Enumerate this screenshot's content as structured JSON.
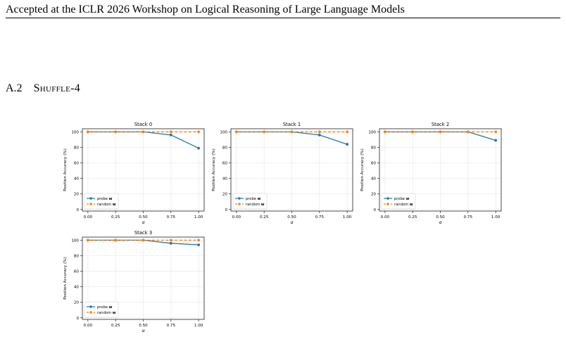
{
  "header": {
    "text": "Accepted at the ICLR 2026 Workshop on Logical Reasoning of Large Language Models"
  },
  "section": {
    "number": "A.2",
    "title": "Shuffle-4"
  },
  "colors": {
    "probe": "#1f77b4",
    "random": "#ff7f0e",
    "grid": "#e6e6e6",
    "axis": "#000000"
  },
  "chart_data": [
    {
      "type": "line",
      "title": "Stack 0",
      "xlabel": "α",
      "ylabel": "Position Accuracy (%)",
      "x": [
        0.0,
        0.25,
        0.5,
        0.75,
        1.0
      ],
      "x_ticks": [
        "0.00",
        "0.25",
        "0.50",
        "0.75",
        "1.00"
      ],
      "y_ticks": [
        "0",
        "20",
        "40",
        "60",
        "80",
        "100"
      ],
      "xlim": [
        -0.05,
        1.05
      ],
      "ylim": [
        -2,
        104
      ],
      "grid": true,
      "legend_position": "lower-left",
      "series": [
        {
          "name": "probe w",
          "style": "solid",
          "values": [
            100,
            100,
            100,
            96,
            79
          ]
        },
        {
          "name": "random w",
          "style": "dashed",
          "values": [
            100,
            100,
            100,
            100,
            100
          ]
        }
      ]
    },
    {
      "type": "line",
      "title": "Stack 1",
      "xlabel": "α",
      "ylabel": "Position Accuracy (%)",
      "x": [
        0.0,
        0.25,
        0.5,
        0.75,
        1.0
      ],
      "x_ticks": [
        "0.00",
        "0.25",
        "0.50",
        "0.75",
        "1.00"
      ],
      "y_ticks": [
        "0",
        "20",
        "40",
        "60",
        "80",
        "100"
      ],
      "xlim": [
        -0.05,
        1.05
      ],
      "ylim": [
        -2,
        104
      ],
      "grid": true,
      "legend_position": "lower-left",
      "series": [
        {
          "name": "probe w",
          "style": "solid",
          "values": [
            100,
            100,
            100,
            96,
            84
          ]
        },
        {
          "name": "random w",
          "style": "dashed",
          "values": [
            100,
            100,
            100,
            100,
            100
          ]
        }
      ]
    },
    {
      "type": "line",
      "title": "Stack 2",
      "xlabel": "α",
      "ylabel": "Position Accuracy (%)",
      "x": [
        0.0,
        0.25,
        0.5,
        0.75,
        1.0
      ],
      "x_ticks": [
        "0.00",
        "0.25",
        "0.50",
        "0.75",
        "1.00"
      ],
      "y_ticks": [
        "0",
        "20",
        "40",
        "60",
        "80",
        "100"
      ],
      "xlim": [
        -0.05,
        1.05
      ],
      "ylim": [
        -2,
        104
      ],
      "grid": true,
      "legend_position": "lower-left",
      "series": [
        {
          "name": "probe w",
          "style": "solid",
          "values": [
            100,
            100,
            100,
            100,
            89
          ]
        },
        {
          "name": "random w",
          "style": "dashed",
          "values": [
            100,
            100,
            100,
            100,
            100
          ]
        }
      ]
    },
    {
      "type": "line",
      "title": "Stack 3",
      "xlabel": "α",
      "ylabel": "Position Accuracy (%)",
      "x": [
        0.0,
        0.25,
        0.5,
        0.75,
        1.0
      ],
      "x_ticks": [
        "0.00",
        "0.25",
        "0.50",
        "0.75",
        "1.00"
      ],
      "y_ticks": [
        "0",
        "20",
        "40",
        "60",
        "80",
        "100"
      ],
      "xlim": [
        -0.05,
        1.05
      ],
      "ylim": [
        -2,
        104
      ],
      "grid": true,
      "legend_position": "lower-left",
      "series": [
        {
          "name": "probe w",
          "style": "solid",
          "values": [
            100,
            100,
            100,
            96,
            94
          ]
        },
        {
          "name": "random w",
          "style": "dashed",
          "values": [
            100,
            100,
            100,
            100,
            100
          ]
        }
      ]
    }
  ]
}
